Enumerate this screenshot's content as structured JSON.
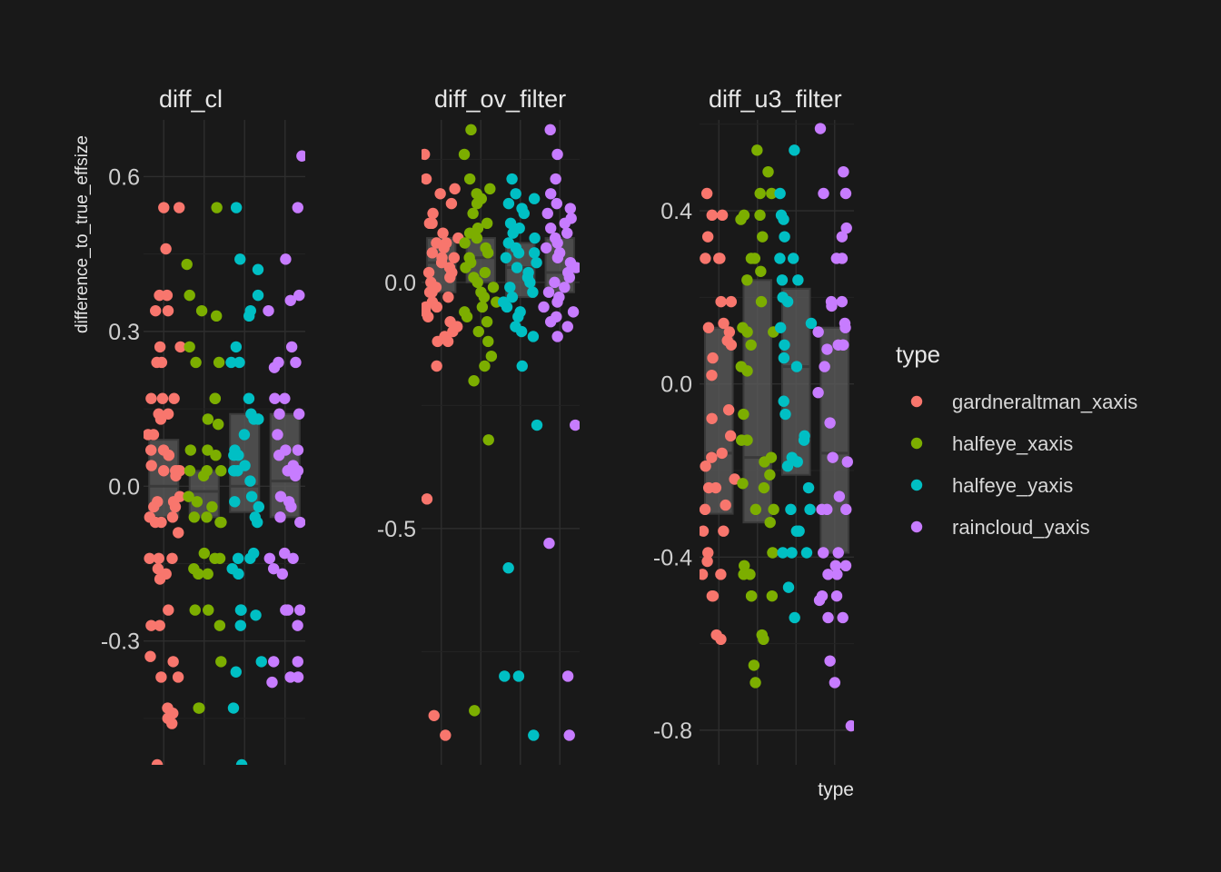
{
  "chart_data": {
    "type": "scatter",
    "subtype": "faceted jittered points with boxplots",
    "ylabel": "difference_to_true_effsize",
    "xlabel": "type",
    "legend": {
      "title": "type",
      "position": "right",
      "entries": [
        {
          "name": "gardneraltman_xaxis",
          "color": "#F8766D"
        },
        {
          "name": "halfeye_xaxis",
          "color": "#7CAE00"
        },
        {
          "name": "halfeye_yaxis",
          "color": "#00BFC4"
        },
        {
          "name": "raincloud_yaxis",
          "color": "#C77CFF"
        }
      ]
    },
    "grid": true,
    "facets": [
      {
        "title": "diff_cl",
        "ylim": [
          -0.54,
          0.71
        ],
        "yticks": [
          -0.3,
          0.0,
          0.3,
          0.6
        ],
        "ytick_labels": [
          "-0.3",
          "0.0",
          "0.3",
          "0.6"
        ],
        "boxes": [
          {
            "q1": -0.06,
            "median": 0.0,
            "q3": 0.09
          },
          {
            "q1": -0.06,
            "median": -0.01,
            "q3": 0.03
          },
          {
            "q1": -0.05,
            "median": 0.0,
            "q3": 0.14
          },
          {
            "q1": -0.06,
            "median": 0.01,
            "q3": 0.14
          }
        ],
        "series": [
          {
            "name": "gardneraltman_xaxis",
            "y": [
              0.54,
              0.54,
              0.46,
              0.37,
              0.37,
              0.34,
              0.34,
              0.27,
              0.27,
              0.24,
              0.24,
              0.17,
              0.17,
              0.17,
              0.14,
              0.14,
              0.13,
              0.1,
              0.1,
              0.07,
              0.07,
              0.06,
              0.06,
              0.04,
              0.03,
              0.03,
              0.03,
              0.03,
              0.02,
              -0.02,
              -0.03,
              -0.03,
              -0.04,
              -0.04,
              -0.06,
              -0.06,
              -0.07,
              -0.07,
              -0.09,
              -0.14,
              -0.14,
              -0.14,
              -0.16,
              -0.17,
              -0.18,
              -0.24,
              -0.27,
              -0.27,
              -0.33,
              -0.34,
              -0.37,
              -0.37,
              -0.43,
              -0.44,
              -0.45,
              -0.46,
              -0.54
            ]
          },
          {
            "name": "halfeye_xaxis",
            "y": [
              0.54,
              0.43,
              0.37,
              0.34,
              0.33,
              0.27,
              0.24,
              0.24,
              0.17,
              0.17,
              0.13,
              0.12,
              0.07,
              0.07,
              0.06,
              0.03,
              0.03,
              0.03,
              0.02,
              -0.02,
              -0.03,
              -0.04,
              -0.06,
              -0.06,
              -0.07,
              -0.07,
              -0.13,
              -0.14,
              -0.14,
              -0.16,
              -0.17,
              -0.17,
              -0.24,
              -0.24,
              -0.27,
              -0.34,
              -0.43,
              -0.43
            ]
          },
          {
            "name": "halfeye_yaxis",
            "y": [
              0.54,
              0.44,
              0.42,
              0.37,
              0.34,
              0.33,
              0.27,
              0.24,
              0.24,
              0.17,
              0.14,
              0.13,
              0.13,
              0.1,
              0.07,
              0.06,
              0.06,
              0.04,
              0.03,
              0.03,
              0.03,
              0.01,
              -0.02,
              -0.03,
              -0.04,
              -0.06,
              -0.07,
              -0.13,
              -0.14,
              -0.14,
              -0.16,
              -0.17,
              -0.24,
              -0.24,
              -0.25,
              -0.27,
              -0.34,
              -0.36,
              -0.43,
              -0.54
            ]
          },
          {
            "name": "raincloud_yaxis",
            "y": [
              0.64,
              0.54,
              0.44,
              0.37,
              0.36,
              0.34,
              0.27,
              0.24,
              0.24,
              0.23,
              0.17,
              0.17,
              0.14,
              0.14,
              0.1,
              0.07,
              0.07,
              0.06,
              0.04,
              0.03,
              0.03,
              0.03,
              0.02,
              -0.02,
              -0.03,
              -0.04,
              -0.06,
              -0.07,
              -0.13,
              -0.14,
              -0.14,
              -0.16,
              -0.17,
              -0.24,
              -0.24,
              -0.24,
              -0.27,
              -0.34,
              -0.34,
              -0.37,
              -0.37,
              -0.38
            ]
          }
        ]
      },
      {
        "title": "diff_ov_filter",
        "ylim": [
          -0.98,
          0.33
        ],
        "yticks": [
          -0.5,
          0.0
        ],
        "ytick_labels": [
          "-0.5",
          "0.0"
        ],
        "boxes": [
          {
            "q1": -0.02,
            "median": 0.04,
            "q3": 0.09
          },
          {
            "q1": 0.0,
            "median": 0.05,
            "q3": 0.09
          },
          {
            "q1": -0.03,
            "median": 0.03,
            "q3": 0.08
          },
          {
            "q1": -0.02,
            "median": 0.02,
            "q3": 0.09
          }
        ],
        "series": [
          {
            "name": "gardneraltman_xaxis",
            "y": [
              0.26,
              0.21,
              0.19,
              0.18,
              0.16,
              0.14,
              0.12,
              0.12,
              0.1,
              0.09,
              0.08,
              0.08,
              0.07,
              0.06,
              0.05,
              0.05,
              0.04,
              0.03,
              0.02,
              0.02,
              0.01,
              0.0,
              -0.01,
              -0.02,
              -0.02,
              -0.03,
              -0.04,
              -0.05,
              -0.05,
              -0.06,
              -0.07,
              -0.08,
              -0.09,
              -0.1,
              -0.11,
              -0.12,
              -0.12,
              -0.17,
              -0.44,
              -0.88,
              -0.92
            ]
          },
          {
            "name": "halfeye_xaxis",
            "y": [
              0.31,
              0.26,
              0.21,
              0.19,
              0.18,
              0.17,
              0.16,
              0.14,
              0.12,
              0.11,
              0.1,
              0.09,
              0.08,
              0.07,
              0.06,
              0.05,
              0.04,
              0.03,
              0.02,
              0.01,
              0.0,
              -0.01,
              -0.02,
              -0.03,
              -0.04,
              -0.05,
              -0.06,
              -0.07,
              -0.08,
              -0.1,
              -0.12,
              -0.15,
              -0.17,
              -0.2,
              -0.32,
              -0.87
            ]
          },
          {
            "name": "halfeye_yaxis",
            "y": [
              0.21,
              0.18,
              0.17,
              0.16,
              0.15,
              0.14,
              0.12,
              0.11,
              0.1,
              0.09,
              0.08,
              0.07,
              0.06,
              0.06,
              0.05,
              0.04,
              0.03,
              0.02,
              0.01,
              0.0,
              -0.01,
              -0.02,
              -0.03,
              -0.04,
              -0.05,
              -0.06,
              -0.07,
              -0.09,
              -0.1,
              -0.11,
              -0.17,
              -0.29,
              -0.58,
              -0.8,
              -0.8,
              -0.92
            ]
          },
          {
            "name": "raincloud_yaxis",
            "y": [
              0.31,
              0.26,
              0.21,
              0.18,
              0.16,
              0.15,
              0.14,
              0.13,
              0.12,
              0.11,
              0.1,
              0.09,
              0.08,
              0.07,
              0.06,
              0.05,
              0.04,
              0.03,
              0.02,
              0.01,
              0.0,
              -0.01,
              -0.02,
              -0.03,
              -0.04,
              -0.05,
              -0.06,
              -0.07,
              -0.08,
              -0.09,
              -0.11,
              -0.29,
              -0.53,
              -0.8,
              -0.92
            ]
          }
        ]
      },
      {
        "title": "diff_u3_filter",
        "ylim": [
          -0.88,
          0.61
        ],
        "yticks": [
          -0.8,
          -0.4,
          0.0,
          0.4
        ],
        "ytick_labels": [
          "-0.8",
          "-0.4",
          "0.0",
          "0.4"
        ],
        "boxes": [
          {
            "q1": -0.3,
            "median": -0.16,
            "q3": 0.13
          },
          {
            "q1": -0.32,
            "median": -0.17,
            "q3": 0.24
          },
          {
            "q1": -0.21,
            "median": 0.04,
            "q3": 0.22
          },
          {
            "q1": -0.39,
            "median": -0.16,
            "q3": 0.13
          }
        ],
        "series": [
          {
            "name": "gardneraltman_xaxis",
            "y": [
              0.44,
              0.39,
              0.39,
              0.34,
              0.29,
              0.29,
              0.29,
              0.19,
              0.19,
              0.14,
              0.13,
              0.12,
              0.1,
              0.09,
              0.06,
              0.02,
              -0.06,
              -0.08,
              -0.12,
              -0.16,
              -0.17,
              -0.19,
              -0.22,
              -0.24,
              -0.24,
              -0.28,
              -0.29,
              -0.34,
              -0.34,
              -0.39,
              -0.41,
              -0.44,
              -0.44,
              -0.49,
              -0.49,
              -0.58,
              -0.59
            ]
          },
          {
            "name": "halfeye_xaxis",
            "y": [
              0.54,
              0.49,
              0.44,
              0.44,
              0.39,
              0.39,
              0.38,
              0.34,
              0.29,
              0.29,
              0.26,
              0.24,
              0.19,
              0.13,
              0.12,
              0.12,
              0.09,
              0.04,
              0.03,
              -0.07,
              -0.13,
              -0.13,
              -0.17,
              -0.18,
              -0.21,
              -0.23,
              -0.24,
              -0.29,
              -0.29,
              -0.32,
              -0.39,
              -0.42,
              -0.44,
              -0.44,
              -0.49,
              -0.49,
              -0.49,
              -0.58,
              -0.59,
              -0.65,
              -0.69
            ]
          },
          {
            "name": "halfeye_yaxis",
            "y": [
              0.54,
              0.44,
              0.39,
              0.38,
              0.34,
              0.29,
              0.29,
              0.24,
              0.24,
              0.2,
              0.19,
              0.14,
              0.13,
              0.09,
              0.06,
              0.04,
              -0.04,
              -0.07,
              -0.12,
              -0.13,
              -0.17,
              -0.18,
              -0.19,
              -0.24,
              -0.29,
              -0.29,
              -0.34,
              -0.34,
              -0.39,
              -0.39,
              -0.39,
              -0.47,
              -0.54
            ]
          },
          {
            "name": "raincloud_yaxis",
            "y": [
              0.59,
              0.49,
              0.44,
              0.44,
              0.36,
              0.34,
              0.29,
              0.29,
              0.19,
              0.19,
              0.18,
              0.14,
              0.13,
              0.12,
              0.09,
              0.09,
              0.09,
              0.08,
              0.04,
              -0.02,
              -0.09,
              -0.17,
              -0.18,
              -0.26,
              -0.29,
              -0.29,
              -0.29,
              -0.39,
              -0.39,
              -0.42,
              -0.42,
              -0.44,
              -0.44,
              -0.49,
              -0.49,
              -0.5,
              -0.54,
              -0.54,
              -0.64,
              -0.69,
              -0.79
            ]
          }
        ]
      }
    ]
  }
}
